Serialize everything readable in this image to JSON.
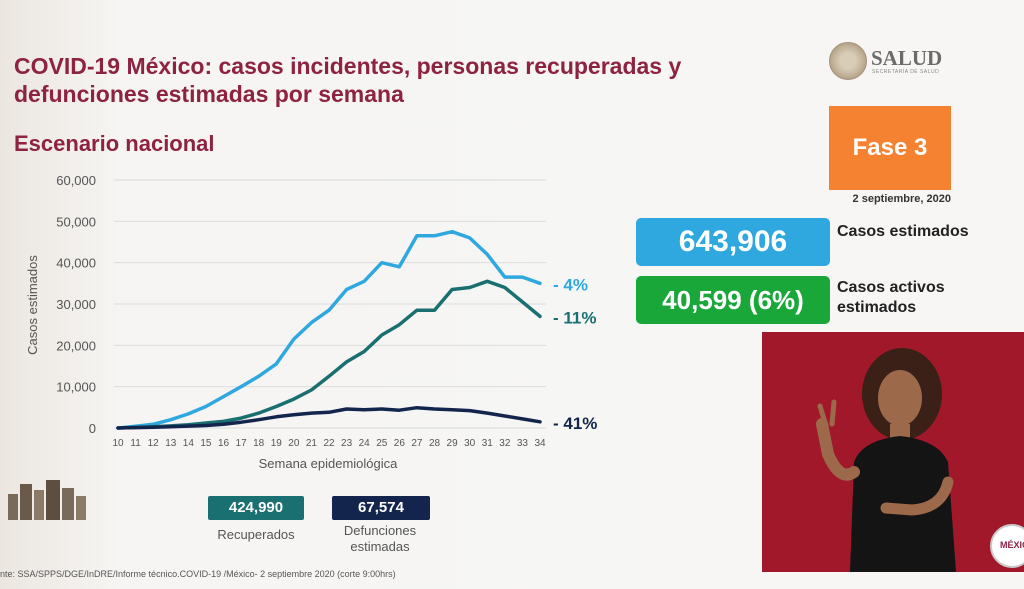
{
  "slide": {
    "title": "COVID-19 México: casos incidentes, personas recuperadas y defunciones estimadas por semana",
    "subtitle": "Escenario nacional",
    "logo_text": "SALUD",
    "logo_subtext": "SECRETARÍA DE SALUD",
    "phase_label": "Fase 3",
    "date": "2 septiembre, 2020",
    "kpis": [
      {
        "value": "643,906",
        "label": "Casos estimados",
        "color": "#2fa8e0"
      },
      {
        "value": "40,599 (6%)",
        "label": "Casos activos estimados",
        "color": "#1aa73a"
      }
    ],
    "summary": [
      {
        "value": "424,990",
        "label": "Recuperados",
        "color": "#1a6f71"
      },
      {
        "value": "67,574",
        "label": "Defunciones estimadas",
        "color": "#14254d"
      }
    ],
    "source": "nte: SSA/SPPS/DGE/InDRE/Informe técnico.COVID-19 /México- 2 septiembre 2020 (corte 9:00hrs)",
    "badge_text": "MÉXICO",
    "brand_color": "#8e2241",
    "accent_orange": "#f58231"
  },
  "chart_data": {
    "type": "line",
    "title": "",
    "xlabel": "Semana epidemiológica",
    "ylabel": "Casos estimados",
    "ylim": [
      0,
      60000
    ],
    "yticks": [
      0,
      10000,
      20000,
      30000,
      40000,
      50000,
      60000
    ],
    "ytick_labels": [
      "0",
      "10,000",
      "20,000",
      "30,000",
      "40,000",
      "50,000",
      "60,000"
    ],
    "x": [
      "10",
      "11",
      "12",
      "13",
      "14",
      "15",
      "16",
      "17",
      "18",
      "19",
      "20",
      "21",
      "22",
      "23",
      "24",
      "25",
      "26",
      "27",
      "28",
      "29",
      "30",
      "31",
      "32",
      "33",
      "34"
    ],
    "grid": true,
    "legend": "none",
    "series": [
      {
        "color": "#2fa8e0",
        "end_label": "- 4%",
        "values": [
          0,
          400,
          900,
          2000,
          3400,
          5200,
          7600,
          10000,
          12500,
          15500,
          21500,
          25500,
          28500,
          33500,
          35500,
          40000,
          39000,
          46500,
          46500,
          47500,
          46000,
          42000,
          36500,
          36500,
          35000
        ]
      },
      {
        "color": "#1a6f71",
        "end_label": "- 11%",
        "values": [
          0,
          150,
          300,
          500,
          800,
          1200,
          1600,
          2400,
          3600,
          5200,
          7000,
          9200,
          12500,
          16000,
          18500,
          22500,
          25000,
          28500,
          28500,
          33500,
          34000,
          35500,
          34000,
          30500,
          27000
        ]
      },
      {
        "color": "#14254d",
        "end_label": "- 41%",
        "values": [
          0,
          100,
          200,
          300,
          450,
          600,
          900,
          1400,
          2000,
          2700,
          3200,
          3600,
          3800,
          4600,
          4400,
          4600,
          4300,
          4900,
          4600,
          4400,
          4200,
          3600,
          2900,
          2200,
          1500
        ]
      }
    ]
  }
}
